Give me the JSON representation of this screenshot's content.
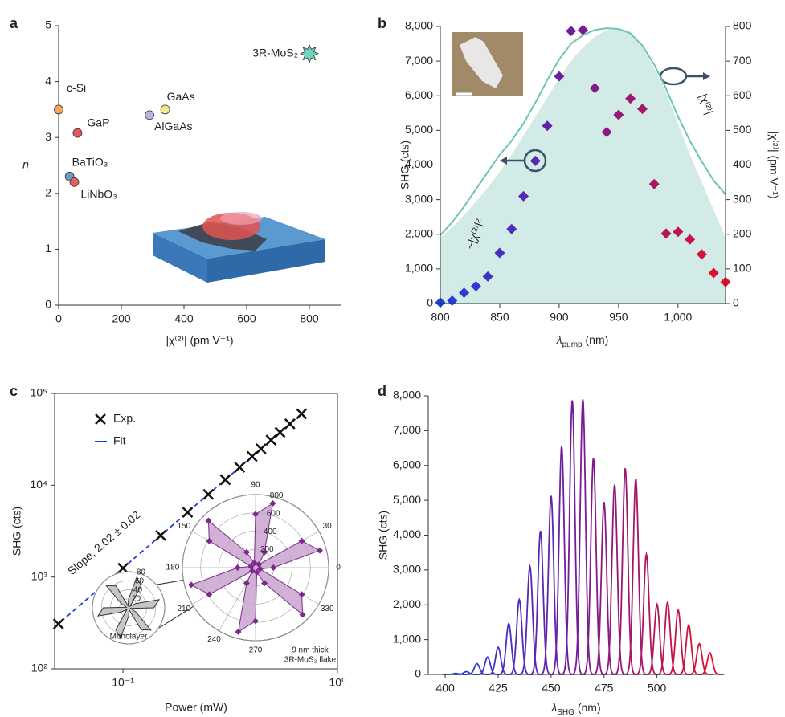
{
  "chart_data": [
    {
      "type": "scatter",
      "panel_label": "a",
      "xlabel": "|χ⁽²⁾| (pm V⁻¹)",
      "ylabel": "n",
      "xlim": [
        0,
        900
      ],
      "xticks": [
        0,
        200,
        400,
        600,
        800
      ],
      "ylim": [
        0,
        5
      ],
      "yticks": [
        0,
        1,
        2,
        3,
        4,
        5
      ],
      "points": [
        {
          "label": "c-Si",
          "x": 0,
          "y": 3.5,
          "color": "#f5a55c"
        },
        {
          "label": "GaP",
          "x": 60,
          "y": 3.08,
          "color": "#e8575a"
        },
        {
          "label": "BaTiO₃",
          "x": 35,
          "y": 2.3,
          "color": "#6b9ac4"
        },
        {
          "label": "LiNbO₃",
          "x": 50,
          "y": 2.2,
          "color": "#e06060"
        },
        {
          "label": "AlGaAs",
          "x": 290,
          "y": 3.4,
          "color": "#b9b3e0"
        },
        {
          "label": "GaAs",
          "x": 340,
          "y": 3.5,
          "color": "#f6ec8c"
        },
        {
          "label": "3R-MoS₂",
          "x": 800,
          "y": 4.5,
          "color": "#6fd3c0",
          "marker": "star"
        }
      ]
    },
    {
      "type": "combo",
      "panel_label": "b",
      "xlabel_symbol": "λ",
      "xlabel_sub": "pump",
      "xlabel_unit": " (nm)",
      "ylabel": "SHG (cts)",
      "y2label": "|χ⁽²⁾| (pm V⁻¹)",
      "xlim": [
        800,
        1040
      ],
      "xticks": [
        800,
        850,
        900,
        950,
        {
          "value": 1000,
          "label": "1,000"
        }
      ],
      "ylim": [
        0,
        8000
      ],
      "yticks": [
        0,
        {
          "value": 1000,
          "label": "1,000"
        },
        {
          "value": 2000,
          "label": "2,000"
        },
        {
          "value": 3000,
          "label": "3,000"
        },
        {
          "value": 4000,
          "label": "4,000"
        },
        {
          "value": 5000,
          "label": "5,000"
        },
        {
          "value": 6000,
          "label": "6,000"
        },
        {
          "value": 7000,
          "label": "7,000"
        },
        {
          "value": 8000,
          "label": "8,000"
        }
      ],
      "y2lim": [
        0,
        800
      ],
      "y2ticks": [
        0,
        100,
        200,
        300,
        400,
        500,
        600,
        700,
        800
      ],
      "x": [
        800,
        810,
        820,
        830,
        840,
        850,
        860,
        870,
        880,
        890,
        900,
        910,
        920,
        930,
        940,
        950,
        960,
        970,
        980,
        990,
        1000,
        1010,
        1020,
        1030,
        1040
      ],
      "series": [
        {
          "marker": "diamond",
          "color_stops": [
            "#1f3fe0",
            "#7a1a96",
            "#e3102a"
          ],
          "values": [
            30,
            80,
            310,
            500,
            780,
            1460,
            2150,
            3100,
            4120,
            5130,
            6560,
            7870,
            7900,
            6220,
            4950,
            5450,
            5920,
            5620,
            3450,
            2020,
            2070,
            1850,
            1420,
            880,
            620
          ]
        },
        {
          "name": "~|χ⁽²⁾|²",
          "color": "#d3ebe6",
          "fill": true,
          "values": [
            1900,
            2200,
            2550,
            2950,
            3350,
            3800,
            4300,
            4850,
            5400,
            5950,
            6500,
            7000,
            7400,
            7700,
            7900,
            7950,
            7850,
            7400,
            6800,
            6100,
            5200,
            4300,
            3500,
            2700,
            1900
          ]
        },
        {
          "name": "|χ⁽²⁾|",
          "color": "#6cc5b3",
          "axis": "y2",
          "values": [
            197,
            235,
            280,
            330,
            380,
            430,
            470,
            520,
            580,
            645,
            705,
            750,
            775,
            790,
            795,
            793,
            780,
            745,
            690,
            620,
            540,
            470,
            410,
            355,
            315
          ]
        }
      ]
    },
    {
      "type": "line",
      "panel_label": "c",
      "xlabel": "Power (mW)",
      "ylabel": "SHG (cts)",
      "log_x": true,
      "log_y": true,
      "xlim": [
        0.048,
        1
      ],
      "xticks": [
        {
          "value": 0.1,
          "label": "10⁻¹"
        },
        {
          "value": 1,
          "label": "10⁰"
        }
      ],
      "ylim": [
        100,
        100000
      ],
      "yticks": [
        {
          "value": 100,
          "label": "10²"
        },
        {
          "value": 1000,
          "label": "10³"
        },
        {
          "value": 10000,
          "label": "10⁴"
        },
        {
          "value": 100000,
          "label": "10⁵"
        }
      ],
      "series": [
        {
          "name": "Exp.",
          "color": "#111111",
          "marker": "x",
          "x": [
            0.05,
            0.1,
            0.15,
            0.2,
            0.25,
            0.3,
            0.35,
            0.4,
            0.44,
            0.49,
            0.54,
            0.6,
            0.68
          ],
          "values": [
            308,
            1250,
            2835,
            5070,
            7950,
            11490,
            15690,
            20560,
            24940,
            31000,
            37700,
            46600,
            60000
          ]
        },
        {
          "name": "Fit",
          "color": "#1f3fe0",
          "dashed": true,
          "x": [
            0.048,
            0.7
          ],
          "values": [
            285,
            63500
          ]
        }
      ],
      "annotation": "Slope, 2.02 ± 0.02",
      "insets": [
        {
          "type": "polar",
          "caption": [
            "9 nm thick",
            "3R-MoS₂ flake"
          ],
          "color": "#7b2a8a",
          "fill": "#c9a3cf",
          "rlim": [
            0,
            800
          ],
          "rticks": [
            200,
            400,
            600,
            800
          ],
          "thetaticks": [
            0,
            30,
            90,
            150,
            180,
            210,
            240,
            270,
            330
          ],
          "theta": [
            0,
            15,
            30,
            45,
            60,
            75,
            90,
            105,
            120,
            135,
            150,
            165,
            180,
            195,
            210,
            225,
            240,
            255,
            270,
            285,
            300,
            315,
            330,
            345
          ],
          "values": [
            195,
            728,
            585,
            52,
            195,
            728,
            585,
            52,
            195,
            728,
            585,
            52,
            195,
            728,
            585,
            52,
            195,
            728,
            585,
            52,
            195,
            728,
            585,
            52
          ]
        },
        {
          "type": "polar",
          "caption": [
            "Monolayer"
          ],
          "color": "#333333",
          "fill": "#bdbdbd",
          "rlim": [
            0,
            80
          ],
          "rticks": [
            20,
            40,
            60,
            80
          ],
          "theta": [
            0,
            15,
            30,
            45,
            60,
            75,
            90,
            105,
            120,
            135,
            150,
            165,
            180,
            195,
            210,
            225,
            240,
            255,
            270,
            285,
            300,
            315,
            330,
            345
          ],
          "values": [
            56,
            70,
            19,
            5,
            56,
            70,
            19,
            5,
            56,
            70,
            19,
            5,
            56,
            70,
            19,
            5,
            56,
            70,
            19,
            5,
            56,
            70,
            19,
            5
          ]
        }
      ]
    },
    {
      "type": "spectra",
      "panel_label": "d",
      "xlabel_symbol": "λ",
      "xlabel_sub": "SHG",
      "xlabel_unit": " (nm)",
      "ylabel": "SHG (cts)",
      "xlim": [
        392,
        532
      ],
      "xticks": [
        400,
        425,
        450,
        475,
        500
      ],
      "ylim": [
        0,
        8000
      ],
      "yticks": [
        0,
        {
          "value": 1000,
          "label": "1,000"
        },
        {
          "value": 2000,
          "label": "2,000"
        },
        {
          "value": 3000,
          "label": "3,000"
        },
        {
          "value": 4000,
          "label": "4,000"
        },
        {
          "value": 5000,
          "label": "5,000"
        },
        {
          "value": 6000,
          "label": "6,000"
        },
        {
          "value": 7000,
          "label": "7,000"
        },
        {
          "value": 8000,
          "label": "8,000"
        }
      ],
      "color_stops": [
        "#1f3fe0",
        "#7a1a96",
        "#e3102a"
      ],
      "centers": [
        405,
        410,
        415,
        420,
        425,
        430,
        435,
        440,
        445,
        450,
        455,
        460,
        465,
        470,
        475,
        480,
        485,
        490,
        495,
        500,
        505,
        510,
        515,
        520,
        525
      ],
      "heights": [
        30,
        80,
        310,
        500,
        780,
        1460,
        2150,
        3100,
        4120,
        5130,
        6560,
        7870,
        7900,
        6220,
        4950,
        5450,
        5920,
        5620,
        3450,
        2020,
        2070,
        1850,
        1420,
        880,
        620
      ]
    }
  ]
}
